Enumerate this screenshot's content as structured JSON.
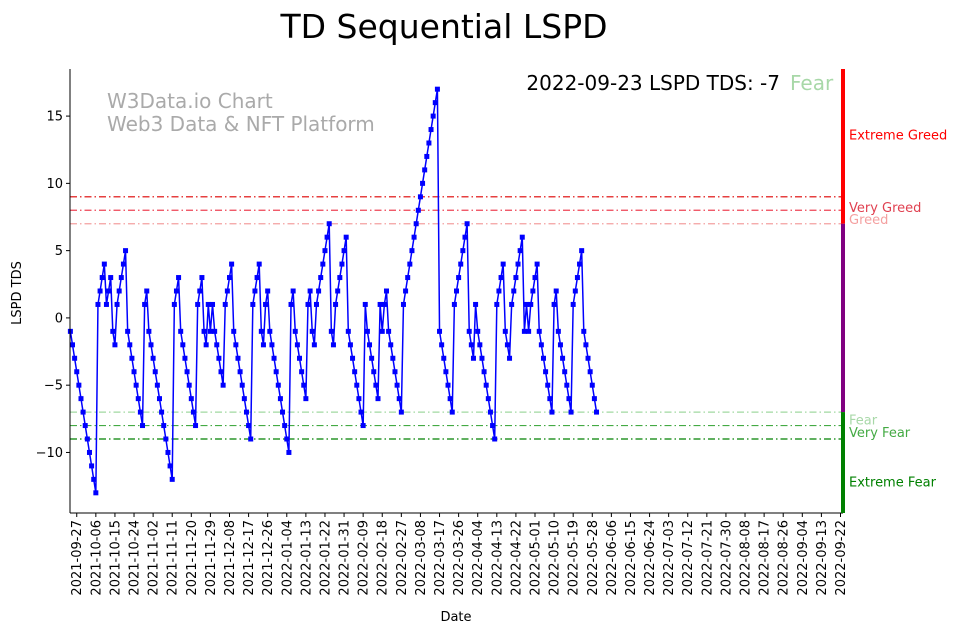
{
  "chart_data": {
    "type": "line",
    "title": "TD Sequential LSPD",
    "xlabel": "Date",
    "ylabel": "LSPD TDS",
    "ylim": [
      -14.5,
      18.5
    ],
    "y_ticks": [
      15,
      10,
      5,
      0,
      -5,
      -10
    ],
    "y_tick_labels": [
      "15",
      "10",
      "5",
      "0",
      "−5",
      "−10"
    ],
    "start_date": "2021-09-24",
    "end_date": "2022-09-23",
    "x_tick_labels": [
      "2021-09-27",
      "2021-10-06",
      "2021-10-15",
      "2021-10-24",
      "2021-11-02",
      "2021-11-11",
      "2021-11-20",
      "2021-11-29",
      "2021-12-08",
      "2021-12-17",
      "2021-12-26",
      "2022-01-04",
      "2022-01-13",
      "2022-01-22",
      "2022-01-31",
      "2022-02-09",
      "2022-02-18",
      "2022-02-27",
      "2022-03-08",
      "2022-03-17",
      "2022-03-26",
      "2022-04-04",
      "2022-04-13",
      "2022-04-22",
      "2022-05-01",
      "2022-05-10",
      "2022-05-19",
      "2022-05-28",
      "2022-06-06",
      "2022-06-15",
      "2022-06-24",
      "2022-07-03",
      "2022-07-12",
      "2022-07-21",
      "2022-07-30",
      "2022-08-08",
      "2022-08-17",
      "2022-08-26",
      "2022-09-04",
      "2022-09-13",
      "2022-09-22"
    ],
    "series": [
      {
        "name": "LSPD TDS",
        "color": "#0000ff",
        "values": [
          -1,
          -2,
          -3,
          -4,
          -5,
          -6,
          -7,
          -8,
          -9,
          -10,
          -11,
          -12,
          -13,
          1,
          2,
          3,
          4,
          1,
          2,
          3,
          -1,
          -2,
          1,
          2,
          3,
          4,
          5,
          -1,
          -2,
          -3,
          -4,
          -5,
          -6,
          -7,
          -8,
          1,
          2,
          -1,
          -2,
          -3,
          -4,
          -5,
          -6,
          -7,
          -8,
          -9,
          -10,
          -11,
          -12,
          1,
          2,
          3,
          -1,
          -2,
          -3,
          -4,
          -5,
          -6,
          -7,
          -8,
          1,
          2,
          3,
          -1,
          -2,
          1,
          -1,
          1,
          -1,
          -2,
          -3,
          -4,
          -5,
          1,
          2,
          3,
          4,
          -1,
          -2,
          -3,
          -4,
          -5,
          -6,
          -7,
          -8,
          -9,
          1,
          2,
          3,
          4,
          -1,
          -2,
          1,
          2,
          -1,
          -2,
          -3,
          -4,
          -5,
          -6,
          -7,
          -8,
          -9,
          -10,
          1,
          2,
          -1,
          -2,
          -3,
          -4,
          -5,
          -6,
          1,
          2,
          -1,
          -2,
          1,
          2,
          3,
          4,
          5,
          6,
          7,
          -1,
          -2,
          1,
          2,
          3,
          4,
          5,
          6,
          -1,
          -2,
          -3,
          -4,
          -5,
          -6,
          -7,
          -8,
          1,
          -1,
          -2,
          -3,
          -4,
          -5,
          -6,
          1,
          -1,
          1,
          2,
          -1,
          -2,
          -3,
          -4,
          -5,
          -6,
          -7,
          1,
          2,
          3,
          4,
          5,
          6,
          7,
          8,
          9,
          10,
          11,
          12,
          13,
          14,
          15,
          16,
          17,
          -1,
          -2,
          -3,
          -4,
          -5,
          -6,
          -7,
          1,
          2,
          3,
          4,
          5,
          6,
          7,
          -1,
          -2,
          -3,
          1,
          -1,
          -2,
          -3,
          -4,
          -5,
          -6,
          -7,
          -8,
          -9,
          1,
          2,
          3,
          4,
          -1,
          -2,
          -3,
          1,
          2,
          3,
          4,
          5,
          6,
          -1,
          1,
          -1,
          1,
          2,
          3,
          4,
          -1,
          -2,
          -3,
          -4,
          -5,
          -6,
          -7,
          1,
          2,
          -1,
          -2,
          -3,
          -4,
          -5,
          -6,
          -7,
          1,
          2,
          3,
          4,
          5,
          -1,
          -2,
          -3,
          -4,
          -5,
          -6,
          -7
        ]
      }
    ],
    "threshold_lines": [
      {
        "label": "Very Greed",
        "value": 9,
        "color": "#dd0000"
      },
      {
        "label": "Greed",
        "value": 8,
        "color": "#ee4455"
      },
      {
        "label": "",
        "value": 7,
        "color": "#f4a0a0"
      },
      {
        "label": "Fear",
        "value": -7,
        "color": "#a0d8a0"
      },
      {
        "label": "Very Fear",
        "value": -8,
        "color": "#44aa44"
      },
      {
        "label": "",
        "value": -9,
        "color": "#008000"
      }
    ],
    "right_bar": [
      {
        "from": 7,
        "to": 18.5,
        "color": "#ff0000"
      },
      {
        "from": -7,
        "to": 7,
        "color": "#800080"
      },
      {
        "from": -14.5,
        "to": -7,
        "color": "#008000"
      }
    ],
    "zone_labels": [
      {
        "text": "Extreme Greed",
        "value": 13.6,
        "color": "#ff0000"
      },
      {
        "text": "Very Greed",
        "value": 8.2,
        "color": "#e04050"
      },
      {
        "text": "Greed",
        "value": 7.3,
        "color": "#f4a0a0"
      },
      {
        "text": "Fear",
        "value": -7.6,
        "color": "#a8d8a8"
      },
      {
        "text": "Very Fear",
        "value": -8.5,
        "color": "#44aa44"
      },
      {
        "text": "Extreme Fear",
        "value": -12.2,
        "color": "#008000"
      }
    ],
    "status": {
      "text": "2022-09-23 LSPD TDS: -7",
      "level": "Fear",
      "level_color": "#a8d8a8"
    },
    "watermark": [
      "W3Data.io Chart",
      "Web3 Data & NFT Platform"
    ]
  }
}
